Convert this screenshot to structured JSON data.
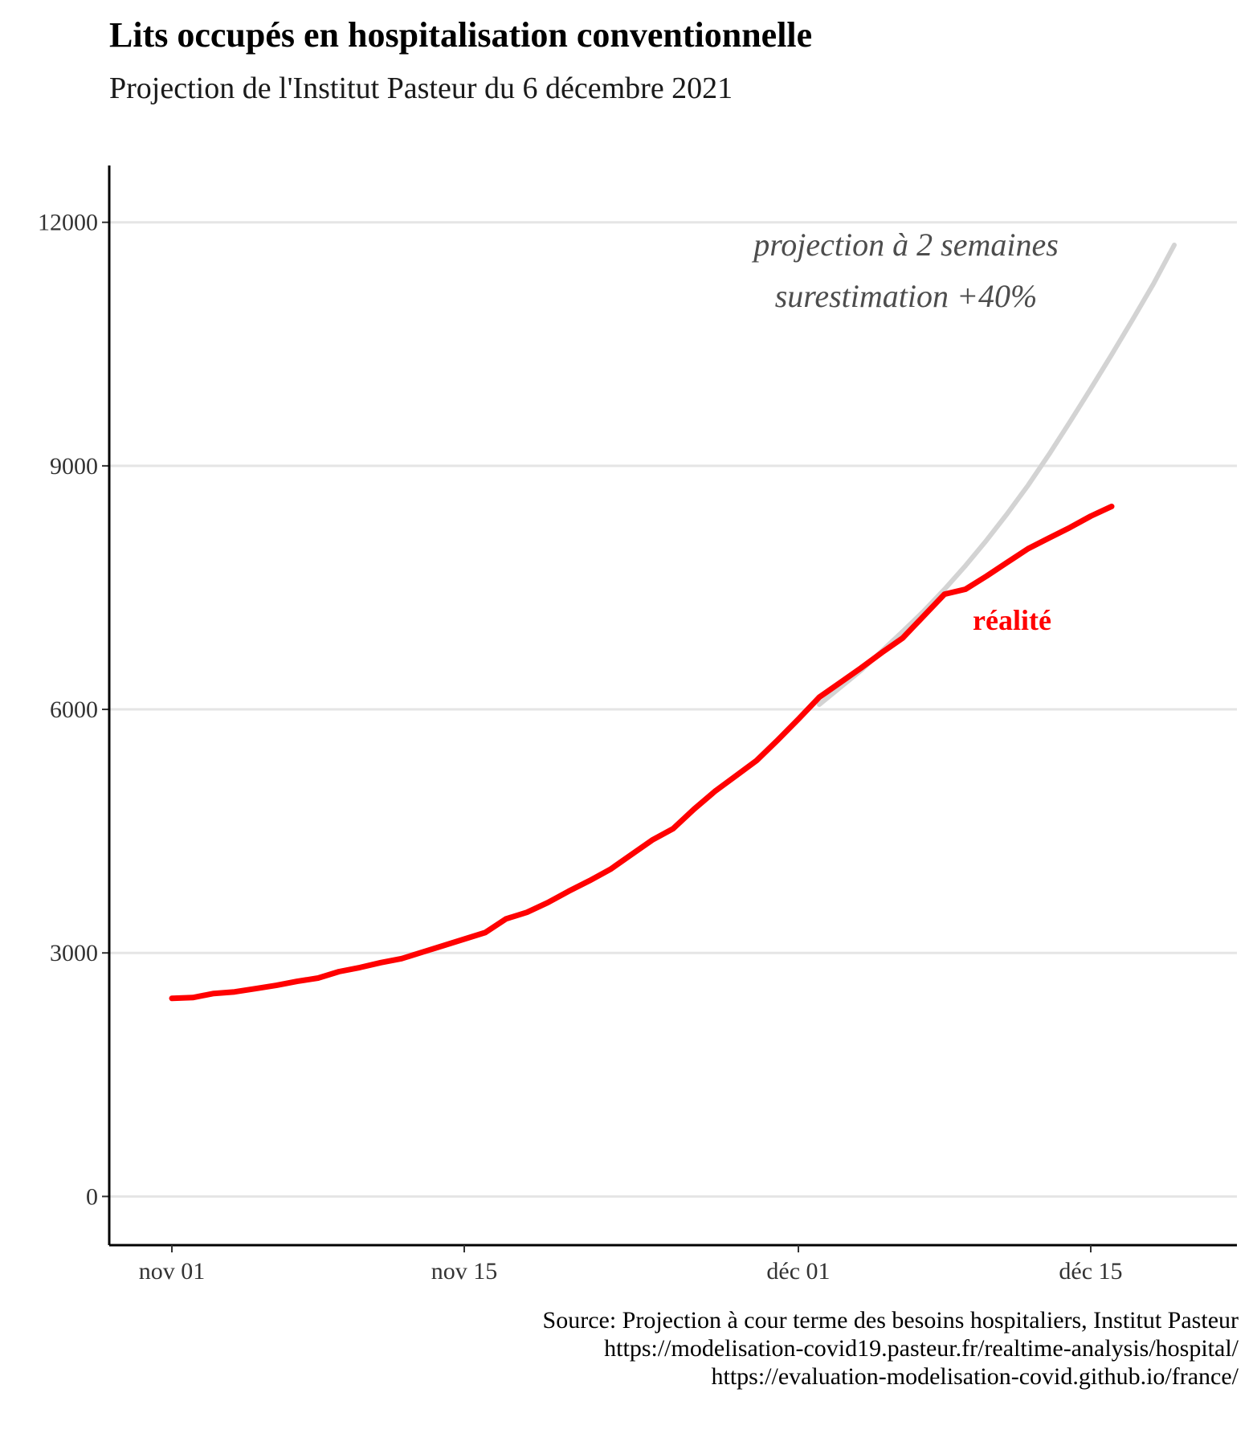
{
  "header": {
    "title": "Lits occupés en hospitalisation conventionnelle",
    "subtitle": "Projection de l'Institut Pasteur du 6 décembre 2021"
  },
  "caption": {
    "lines": [
      "Source: Projection à cour terme des besoins hospitaliers, Institut Pasteur",
      "https://modelisation-covid19.pasteur.fr/realtime-analysis/hospital/",
      "https://evaluation-modelisation-covid.github.io/france/"
    ]
  },
  "colors": {
    "reality": "#ff0000",
    "projection": "#d3d3d3",
    "projection_text": "#4d4d4d",
    "grid": "#e5e5e5",
    "axis": "#000000",
    "tick_text": "#333333"
  },
  "chart_data": {
    "type": "line",
    "xlim": [
      "2021-10-29",
      "2021-12-22"
    ],
    "ylim": [
      -600,
      12700
    ],
    "grid": "horizontal",
    "x_ticks": [
      {
        "date": "2021-11-01",
        "label": "nov 01"
      },
      {
        "date": "2021-11-15",
        "label": "nov 15"
      },
      {
        "date": "2021-12-01",
        "label": "déc 01"
      },
      {
        "date": "2021-12-15",
        "label": "déc 15"
      }
    ],
    "y_ticks": [
      0,
      3000,
      6000,
      9000,
      12000
    ],
    "series": [
      {
        "id": "reality",
        "dates": [
          "2021-11-01",
          "2021-11-02",
          "2021-11-03",
          "2021-11-04",
          "2021-11-05",
          "2021-11-06",
          "2021-11-07",
          "2021-11-08",
          "2021-11-09",
          "2021-11-10",
          "2021-11-11",
          "2021-11-12",
          "2021-11-13",
          "2021-11-14",
          "2021-11-15",
          "2021-11-16",
          "2021-11-17",
          "2021-11-18",
          "2021-11-19",
          "2021-11-20",
          "2021-11-21",
          "2021-11-22",
          "2021-11-23",
          "2021-11-24",
          "2021-11-25",
          "2021-11-26",
          "2021-11-27",
          "2021-11-28",
          "2021-11-29",
          "2021-11-30",
          "2021-12-01",
          "2021-12-02",
          "2021-12-03",
          "2021-12-04",
          "2021-12-05",
          "2021-12-06",
          "2021-12-07",
          "2021-12-08",
          "2021-12-09",
          "2021-12-10",
          "2021-12-11",
          "2021-12-12",
          "2021-12-13",
          "2021-12-14",
          "2021-12-15",
          "2021-12-16"
        ],
        "values": [
          2440,
          2450,
          2500,
          2520,
          2560,
          2600,
          2650,
          2690,
          2770,
          2820,
          2880,
          2930,
          3010,
          3090,
          3170,
          3250,
          3420,
          3500,
          3620,
          3760,
          3890,
          4030,
          4210,
          4390,
          4530,
          4770,
          4990,
          5180,
          5370,
          5620,
          5880,
          6150,
          6330,
          6510,
          6700,
          6880,
          7150,
          7420,
          7480,
          7640,
          7810,
          7980,
          8110,
          8240,
          8380,
          8500
        ]
      },
      {
        "id": "projection",
        "dates": [
          "2021-12-02",
          "2021-12-03",
          "2021-12-04",
          "2021-12-05",
          "2021-12-06",
          "2021-12-07",
          "2021-12-08",
          "2021-12-09",
          "2021-12-10",
          "2021-12-11",
          "2021-12-12",
          "2021-12-13",
          "2021-12-14",
          "2021-12-15",
          "2021-12-16",
          "2021-12-17",
          "2021-12-18",
          "2021-12-19"
        ],
        "values": [
          6060,
          6270,
          6480,
          6720,
          6960,
          7210,
          7480,
          7770,
          8080,
          8410,
          8760,
          9140,
          9540,
          9950,
          10370,
          10800,
          11240,
          11720
        ]
      }
    ],
    "annotations": {
      "projection_line1": "projection à 2 semaines",
      "projection_line2": "surestimation +40%",
      "reality_label": "réalité"
    }
  }
}
